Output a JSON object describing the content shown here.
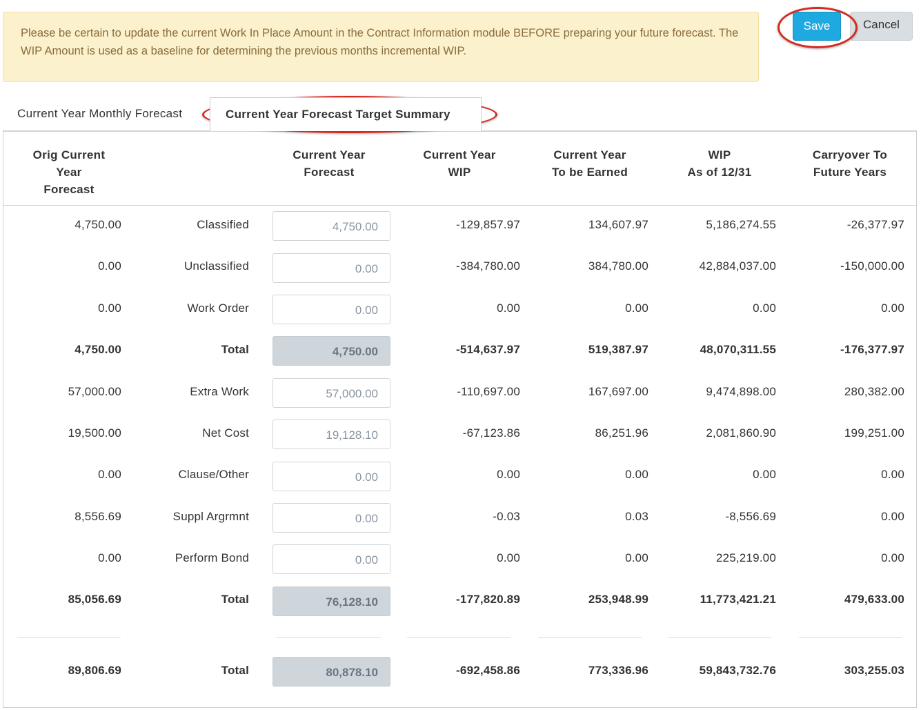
{
  "alert": {
    "text": "Please be certain to update the current Work In Place Amount in the Contract Information module BEFORE preparing your future forecast. The WIP Amount is used as a baseline for determining the previous months incremental WIP."
  },
  "toolbar": {
    "save_label": "Save",
    "cancel_label": "Cancel"
  },
  "tabs": {
    "monthly": "Current Year Monthly Forecast",
    "summary": "Current Year Forecast Target Summary"
  },
  "headers": {
    "orig_l1": "Orig Current",
    "orig_l2": "Year",
    "orig_l3": "Forecast",
    "fc_l1": "Current Year",
    "fc_l2": "Forecast",
    "wip_l1": "Current Year",
    "wip_l2": "WIP",
    "earn_l1": "Current Year",
    "earn_l2": "To be Earned",
    "wipas_l1": "WIP",
    "wipas_l2": "As of 12/31",
    "carry_l1": "Carryover To",
    "carry_l2": "Future Years"
  },
  "rows": [
    {
      "orig": "4,750.00",
      "label": "Classified",
      "forecast": "4,750.00",
      "wip": "-129,857.97",
      "earned": "134,607.97",
      "wip_asof": "5,186,274.55",
      "carryover": "-26,377.97"
    },
    {
      "orig": "0.00",
      "label": "Unclassified",
      "forecast": "0.00",
      "wip": "-384,780.00",
      "earned": "384,780.00",
      "wip_asof": "42,884,037.00",
      "carryover": "-150,000.00"
    },
    {
      "orig": "0.00",
      "label": "Work Order",
      "forecast": "0.00",
      "wip": "0.00",
      "earned": "0.00",
      "wip_asof": "0.00",
      "carryover": "0.00"
    },
    {
      "orig": "4,750.00",
      "label": "Total",
      "forecast": "4,750.00",
      "wip": "-514,637.97",
      "earned": "519,387.97",
      "wip_asof": "48,070,311.55",
      "carryover": "-176,377.97"
    },
    {
      "orig": "57,000.00",
      "label": "Extra Work",
      "forecast": "57,000.00",
      "wip": "-110,697.00",
      "earned": "167,697.00",
      "wip_asof": "9,474,898.00",
      "carryover": "280,382.00"
    },
    {
      "orig": "19,500.00",
      "label": "Net Cost",
      "forecast": "19,128.10",
      "wip": "-67,123.86",
      "earned": "86,251.96",
      "wip_asof": "2,081,860.90",
      "carryover": "199,251.00"
    },
    {
      "orig": "0.00",
      "label": "Clause/Other",
      "forecast": "0.00",
      "wip": "0.00",
      "earned": "0.00",
      "wip_asof": "0.00",
      "carryover": "0.00"
    },
    {
      "orig": "8,556.69",
      "label": "Suppl Argrmnt",
      "forecast": "0.00",
      "wip": "-0.03",
      "earned": "0.03",
      "wip_asof": "-8,556.69",
      "carryover": "0.00"
    },
    {
      "orig": "0.00",
      "label": "Perform Bond",
      "forecast": "0.00",
      "wip": "0.00",
      "earned": "0.00",
      "wip_asof": "225,219.00",
      "carryover": "0.00"
    },
    {
      "orig": "85,056.69",
      "label": "Total",
      "forecast": "76,128.10",
      "wip": "-177,820.89",
      "earned": "253,948.99",
      "wip_asof": "11,773,421.21",
      "carryover": "479,633.00"
    },
    {
      "orig": "89,806.69",
      "label": "Total",
      "forecast": "80,878.10",
      "wip": "-692,458.86",
      "earned": "773,336.96",
      "wip_asof": "59,843,732.76",
      "carryover": "303,255.03"
    }
  ]
}
